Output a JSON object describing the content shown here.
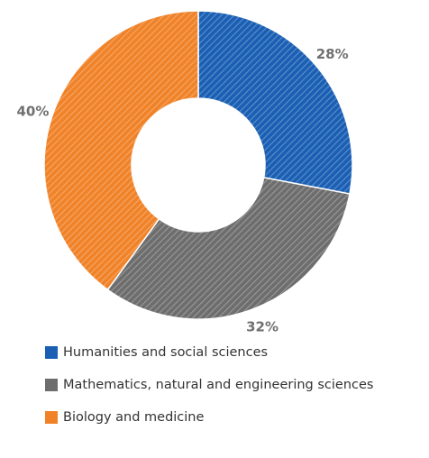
{
  "chart_data": {
    "type": "pie",
    "donut": true,
    "categories": [
      "Humanities and social sciences",
      "Mathematics, natural and engineering sciences",
      "Biology and medicine"
    ],
    "values": [
      28,
      32,
      40
    ],
    "data_labels": [
      "28%",
      "32%",
      "40%"
    ],
    "colors": [
      "#1a5fb4",
      "#6d6d6d",
      "#f08228"
    ],
    "pattern": "diagonal-hatch",
    "legend_position": "bottom"
  }
}
